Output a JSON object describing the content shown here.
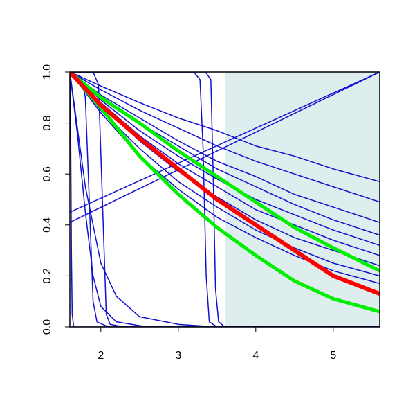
{
  "chart_data": {
    "type": "line",
    "xlim": [
      1.6,
      5.6
    ],
    "ylim": [
      0,
      1
    ],
    "xticks": [
      2,
      3,
      4,
      5
    ],
    "yticks": [
      {
        "value": 0,
        "label": "0.0"
      },
      0.2,
      0.4,
      0.6,
      0.8,
      {
        "value": 1,
        "label": "1.0"
      }
    ],
    "shade": {
      "xlim": [
        3.6,
        5.6
      ],
      "color": "#deeded"
    },
    "series": [
      {
        "color": "#1010d0",
        "linewidth": 1.5,
        "x": [
          1.6,
          2.0,
          2.5,
          3.0,
          3.5,
          4.0,
          4.5,
          5.0,
          5.6
        ],
        "values": [
          1,
          0.945,
          0.88,
          0.82,
          0.77,
          0.71,
          0.67,
          0.62,
          0.57
        ]
      },
      {
        "color": "#1010d0",
        "linewidth": 1.5,
        "x": [
          1.6,
          2.0,
          2.5,
          3.0,
          3.5,
          4.0,
          4.5,
          5.0,
          5.6
        ],
        "values": [
          1,
          0.93,
          0.85,
          0.78,
          0.71,
          0.65,
          0.6,
          0.55,
          0.49
        ]
      },
      {
        "color": "#1010d0",
        "linewidth": 1.5,
        "x": [
          1.6,
          2.0,
          2.5,
          3.0,
          3.5,
          4.0,
          4.5,
          5.0,
          5.6
        ],
        "values": [
          1,
          0.91,
          0.82,
          0.73,
          0.65,
          0.59,
          0.52,
          0.47,
          0.41
        ]
      },
      {
        "color": "#1010d0",
        "linewidth": 1.5,
        "x": [
          1.6,
          2.0,
          2.5,
          3.0,
          3.5,
          4.0,
          4.5,
          5.0,
          5.6
        ],
        "values": [
          1,
          0.9,
          0.8,
          0.71,
          0.62,
          0.55,
          0.48,
          0.42,
          0.36
        ]
      },
      {
        "color": "#1010d0",
        "linewidth": 1.5,
        "x": [
          1.6,
          2.0,
          2.5,
          3.0,
          3.5,
          4.0,
          4.5,
          5.0,
          5.6
        ],
        "values": [
          1,
          0.89,
          0.77,
          0.67,
          0.58,
          0.5,
          0.44,
          0.38,
          0.32
        ]
      },
      {
        "color": "#1010d0",
        "linewidth": 1.5,
        "x": [
          1.6,
          2.0,
          2.5,
          3.0,
          3.5,
          4.0,
          4.5,
          5.0,
          5.6
        ],
        "values": [
          1,
          0.88,
          0.75,
          0.64,
          0.55,
          0.46,
          0.4,
          0.34,
          0.28
        ]
      },
      {
        "color": "#1010d0",
        "linewidth": 1.5,
        "x": [
          1.6,
          2.0,
          2.5,
          3.0,
          3.5,
          4.0,
          4.5,
          5.0,
          5.6
        ],
        "values": [
          1,
          0.87,
          0.73,
          0.61,
          0.51,
          0.42,
          0.35,
          0.3,
          0.24
        ]
      },
      {
        "color": "#1010d0",
        "linewidth": 1.5,
        "x": [
          1.6,
          2.0,
          2.5,
          3.0,
          3.5,
          4.0,
          4.5,
          5.0,
          5.6
        ],
        "values": [
          1,
          0.85,
          0.7,
          0.57,
          0.47,
          0.38,
          0.31,
          0.25,
          0.2
        ]
      },
      {
        "color": "#1010d0",
        "linewidth": 1.5,
        "x": [
          1.6,
          2.0,
          2.5,
          3.0,
          3.5,
          4.0,
          4.5,
          5.0,
          5.6
        ],
        "values": [
          1,
          0.84,
          0.67,
          0.54,
          0.43,
          0.35,
          0.28,
          0.22,
          0.17
        ]
      },
      {
        "color": "#1010d0",
        "linewidth": 1.5,
        "x": [
          1.6,
          5.6
        ],
        "values": [
          0.45,
          1
        ]
      },
      {
        "color": "#1010d0",
        "linewidth": 1.5,
        "x": [
          1.6,
          5.6
        ],
        "values": [
          0.41,
          1
        ]
      },
      {
        "color": "#1010d0",
        "linewidth": 1.5,
        "x": [
          1.6,
          1.75,
          1.8,
          1.85,
          1.9,
          1.95,
          2.1,
          5.6
        ],
        "values": [
          1,
          0.98,
          0.9,
          0.5,
          0.1,
          0.02,
          0,
          0
        ]
      },
      {
        "color": "#1010d0",
        "linewidth": 1.5,
        "x": [
          1.6,
          1.9,
          1.97,
          2.02,
          2.07,
          2.12,
          2.3,
          5.6
        ],
        "values": [
          1,
          1,
          0.95,
          0.5,
          0.05,
          0.01,
          0,
          0
        ]
      },
      {
        "color": "#1010d0",
        "linewidth": 1.5,
        "x": [
          1.6,
          1.8,
          2.0,
          2.2,
          2.5,
          3.0,
          3.5,
          5.6
        ],
        "values": [
          1,
          0.55,
          0.25,
          0.12,
          0.04,
          0.01,
          0,
          0
        ]
      },
      {
        "color": "#1010d0",
        "linewidth": 1.5,
        "x": [
          1.6,
          1.7,
          1.8,
          1.9,
          2.0,
          2.2,
          2.6,
          5.6
        ],
        "values": [
          1,
          0.75,
          0.45,
          0.2,
          0.08,
          0.02,
          0,
          0
        ]
      },
      {
        "color": "#1010d0",
        "linewidth": 1.5,
        "x": [
          1.6,
          1.61,
          1.62,
          1.63,
          1.65,
          5.6
        ],
        "values": [
          1,
          0.8,
          0.3,
          0.05,
          0,
          0
        ]
      },
      {
        "color": "#1010d0",
        "linewidth": 1.5,
        "x": [
          1.6,
          3.2,
          3.28,
          3.32,
          3.36,
          3.4,
          3.5,
          5.6
        ],
        "values": [
          1,
          1,
          0.97,
          0.7,
          0.2,
          0.02,
          0,
          0
        ]
      },
      {
        "color": "#1010d0",
        "linewidth": 1.5,
        "x": [
          1.6,
          3.35,
          3.42,
          3.45,
          3.48,
          3.52,
          3.6,
          5.6
        ],
        "values": [
          1,
          1,
          0.97,
          0.6,
          0.15,
          0.02,
          0,
          0
        ]
      },
      {
        "color": "#00ee00",
        "linewidth": 5,
        "x": [
          1.6,
          2.0,
          2.5,
          3.0,
          3.5,
          4.0,
          4.5,
          5.0,
          5.6
        ],
        "values": [
          1,
          0.86,
          0.67,
          0.52,
          0.39,
          0.28,
          0.18,
          0.11,
          0.06
        ]
      },
      {
        "color": "#00ee00",
        "linewidth": 5,
        "x": [
          1.6,
          2.0,
          2.5,
          3.0,
          3.5,
          4.0,
          4.5,
          5.0,
          5.6
        ],
        "values": [
          1,
          0.9,
          0.8,
          0.69,
          0.59,
          0.49,
          0.39,
          0.31,
          0.22
        ]
      },
      {
        "color": "#ff0000",
        "linewidth": 6,
        "x": [
          1.6,
          2.0,
          2.5,
          3.0,
          3.5,
          4.0,
          4.5,
          5.0,
          5.6
        ],
        "values": [
          1,
          0.87,
          0.74,
          0.62,
          0.5,
          0.4,
          0.3,
          0.2,
          0.13
        ]
      }
    ]
  }
}
